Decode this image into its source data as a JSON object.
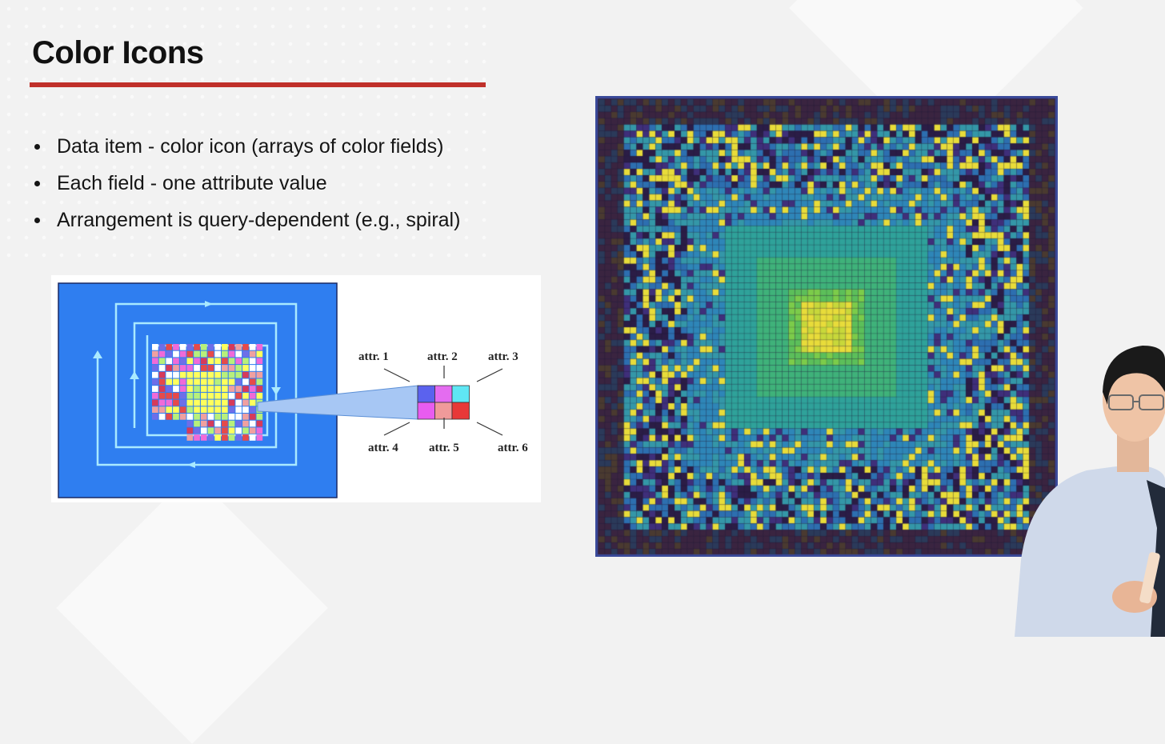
{
  "slide": {
    "title": "Color Icons",
    "accent_color": "#c0302a",
    "bullets": [
      "Data item - color icon (arrays of color fields)",
      "Each field - one attribute value",
      "Arrangement is query-dependent (e.g., spiral)"
    ]
  },
  "diagram": {
    "background_color": "#2f7ef0",
    "spiral_color": "#a9e9ff",
    "attr_labels": [
      "attr. 1",
      "attr. 2",
      "attr. 3",
      "attr. 4",
      "attr. 5",
      "attr. 6"
    ],
    "icon_colors": [
      "#5b62ee",
      "#e46cf0",
      "#5fe6f4",
      "#e85cf0",
      "#f09a9a",
      "#e83838"
    ]
  },
  "visualization": {
    "frame_color": "#3a2c5a",
    "palette": [
      "#2b1d46",
      "#3f2f7a",
      "#2d6fb0",
      "#3497a8",
      "#31a88c",
      "#7ccc4a",
      "#e8dc3a"
    ]
  }
}
